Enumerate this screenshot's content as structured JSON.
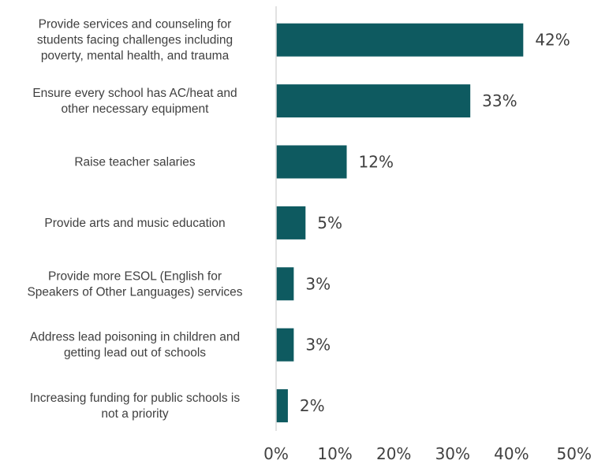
{
  "chart_data": {
    "type": "bar",
    "orientation": "horizontal",
    "categories": [
      [
        "Provide services and counseling for",
        "students facing challenges including",
        "poverty, mental health, and trauma"
      ],
      [
        "Ensure every school has AC/heat and",
        "other necessary equipment"
      ],
      [
        "Raise teacher salaries"
      ],
      [
        "Provide arts and music education"
      ],
      [
        "Provide more ESOL (English for",
        "Speakers of Other Languages) services"
      ],
      [
        "Address lead poisoning in children and",
        "getting lead out of schools"
      ],
      [
        "Increasing funding for public schools is",
        "not a priority"
      ]
    ],
    "values": [
      42,
      33,
      12,
      5,
      3,
      3,
      2
    ],
    "data_labels": [
      "42%",
      "33%",
      "12%",
      "5%",
      "3%",
      "3%",
      "2%"
    ],
    "xlim": [
      0,
      50
    ],
    "x_ticks": [
      0,
      10,
      20,
      30,
      40,
      50
    ],
    "x_tick_labels": [
      "0%",
      "10%",
      "20%",
      "30%",
      "40%",
      "50%"
    ],
    "bar_color": "#0e5a60",
    "axis_color": "#d9d9d9",
    "grid": false,
    "legend": "none"
  }
}
